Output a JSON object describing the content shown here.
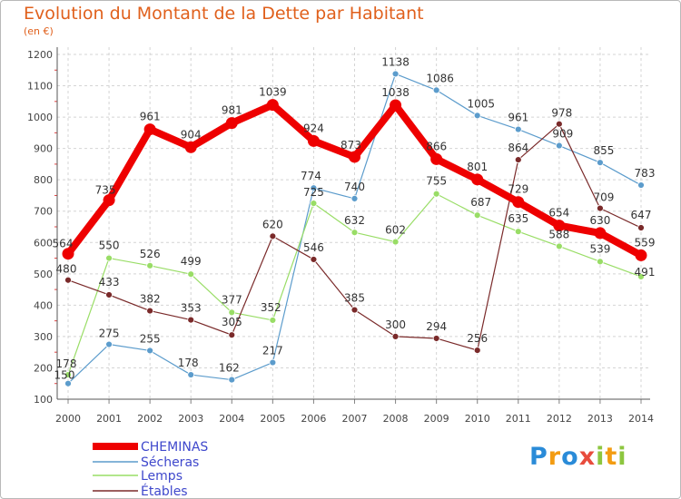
{
  "title": "Evolution du Montant de la Dette par Habitant",
  "subtitle": "(en €)",
  "logo": {
    "text": "Proxiti",
    "letters": [
      {
        "ch": "P",
        "color": "#2a8bd8"
      },
      {
        "ch": "r",
        "color": "#f39c12"
      },
      {
        "ch": "o",
        "color": "#2a8bd8"
      },
      {
        "ch": "x",
        "color": "#e84c3d"
      },
      {
        "ch": "i",
        "color": "#8dc63f"
      },
      {
        "ch": "t",
        "color": "#f39c12"
      },
      {
        "ch": "i",
        "color": "#8dc63f"
      }
    ]
  },
  "chart_data": {
    "type": "line",
    "x": [
      "2000",
      "2001",
      "2002",
      "2003",
      "2004",
      "2005",
      "2006",
      "2007",
      "2008",
      "2009",
      "2010",
      "2011",
      "2012",
      "2013",
      "2014"
    ],
    "ylim": [
      100,
      1200
    ],
    "yticks": [
      100,
      200,
      300,
      400,
      500,
      600,
      700,
      800,
      900,
      1000,
      1100,
      1200
    ],
    "grid": true,
    "legend_position": "bottom-left",
    "series": [
      {
        "name": "CHEMINAS",
        "color": "#ee0000",
        "values": [
          564,
          735,
          961,
          904,
          981,
          1039,
          924,
          873,
          1038,
          866,
          801,
          729,
          654,
          630,
          559
        ],
        "labels": [
          "564",
          "735",
          "961",
          "904",
          "981",
          "1039",
          "924",
          "873",
          "1038",
          "866",
          "801",
          "729",
          "654",
          "630",
          "559"
        ]
      },
      {
        "name": "Sécheras",
        "color": "#5c9ccc",
        "values": [
          150,
          275,
          255,
          178,
          162,
          217,
          774,
          740,
          1138,
          1086,
          1005,
          961,
          909,
          855,
          783
        ],
        "labels": [
          "150",
          "275",
          "255",
          "178",
          "162",
          "217",
          "774",
          "740",
          "1138",
          "1086",
          "1005",
          "961",
          "909",
          "855",
          "783"
        ]
      },
      {
        "name": "Lemps",
        "color": "#99dd66",
        "values": [
          178,
          550,
          526,
          499,
          377,
          352,
          725,
          632,
          602,
          755,
          687,
          635,
          588,
          539,
          491
        ],
        "labels": [
          "178",
          "550",
          "526",
          "499",
          "377",
          "352",
          "725",
          "632",
          "602",
          "755",
          "687",
          "635",
          "588",
          "539",
          "491"
        ]
      },
      {
        "name": "Étables",
        "color": "#7a2a2a",
        "values": [
          480,
          433,
          382,
          353,
          305,
          620,
          546,
          385,
          300,
          294,
          256,
          864,
          978,
          709,
          647
        ],
        "labels": [
          "480",
          "433",
          "382",
          "353",
          "305",
          "620",
          "546",
          "385",
          "300",
          "294",
          "256",
          "864",
          "978",
          "709",
          "647"
        ]
      }
    ]
  }
}
